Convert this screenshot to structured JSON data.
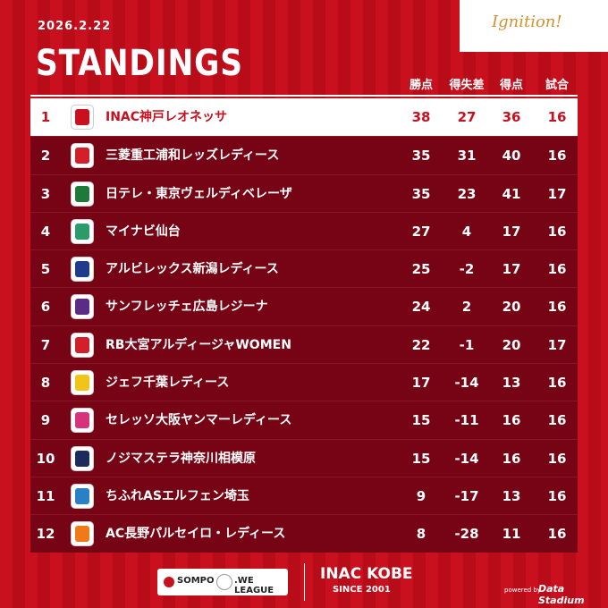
{
  "header": {
    "date": "2026.2.22",
    "title": "STANDINGS",
    "brand": "Ignition!"
  },
  "columns": [
    "勝点",
    "得失差",
    "得点",
    "試合"
  ],
  "rows": [
    {
      "rank": "1",
      "team": "INAC神戸レオネッサ",
      "points": "38",
      "goal_diff": "27",
      "goals": "36",
      "games": "16",
      "logo_color": "#c8101e"
    },
    {
      "rank": "2",
      "team": "三菱重工浦和レッズレディース",
      "points": "35",
      "goal_diff": "31",
      "goals": "40",
      "games": "16",
      "logo_color": "#d2202a"
    },
    {
      "rank": "3",
      "team": "日テレ・東京ヴェルディベレーザ",
      "points": "35",
      "goal_diff": "23",
      "goals": "41",
      "games": "17",
      "logo_color": "#1e7a3a"
    },
    {
      "rank": "4",
      "team": "マイナビ仙台",
      "points": "27",
      "goal_diff": "4",
      "goals": "17",
      "games": "16",
      "logo_color": "#2c9a6a"
    },
    {
      "rank": "5",
      "team": "アルビレックス新潟レディース",
      "points": "25",
      "goal_diff": "-2",
      "goals": "17",
      "games": "16",
      "logo_color": "#1f3c8c"
    },
    {
      "rank": "6",
      "team": "サンフレッチェ広島レジーナ",
      "points": "24",
      "goal_diff": "2",
      "goals": "20",
      "games": "16",
      "logo_color": "#5a2c86"
    },
    {
      "rank": "7",
      "team": "RB大宮アルディージャWOMEN",
      "points": "22",
      "goal_diff": "-1",
      "goals": "20",
      "games": "17",
      "logo_color": "#d2202a"
    },
    {
      "rank": "8",
      "team": "ジェフ千葉レディース",
      "points": "17",
      "goal_diff": "-14",
      "goals": "13",
      "games": "16",
      "logo_color": "#f0c419"
    },
    {
      "rank": "9",
      "team": "セレッソ大阪ヤンマーレディース",
      "points": "15",
      "goal_diff": "-11",
      "goals": "16",
      "games": "16",
      "logo_color": "#d6337a"
    },
    {
      "rank": "10",
      "team": "ノジマステラ神奈川相模原",
      "points": "15",
      "goal_diff": "-14",
      "goals": "16",
      "games": "16",
      "logo_color": "#1a2b5c"
    },
    {
      "rank": "11",
      "team": "ちふれASエルフェン埼玉",
      "points": "9",
      "goal_diff": "-17",
      "goals": "13",
      "games": "16",
      "logo_color": "#2b7fc4"
    },
    {
      "rank": "12",
      "team": "AC長野パルセイロ・レディース",
      "points": "8",
      "goal_diff": "-28",
      "goals": "11",
      "games": "16",
      "logo_color": "#f07a1a"
    }
  ],
  "footer": {
    "sponsor_left": "SOMPO",
    "sponsor_right": ".WE LEAGUE",
    "club": "INAC KOBE",
    "since": "SINCE 2001",
    "powered": "powered by",
    "provider": "Data Stadium"
  }
}
